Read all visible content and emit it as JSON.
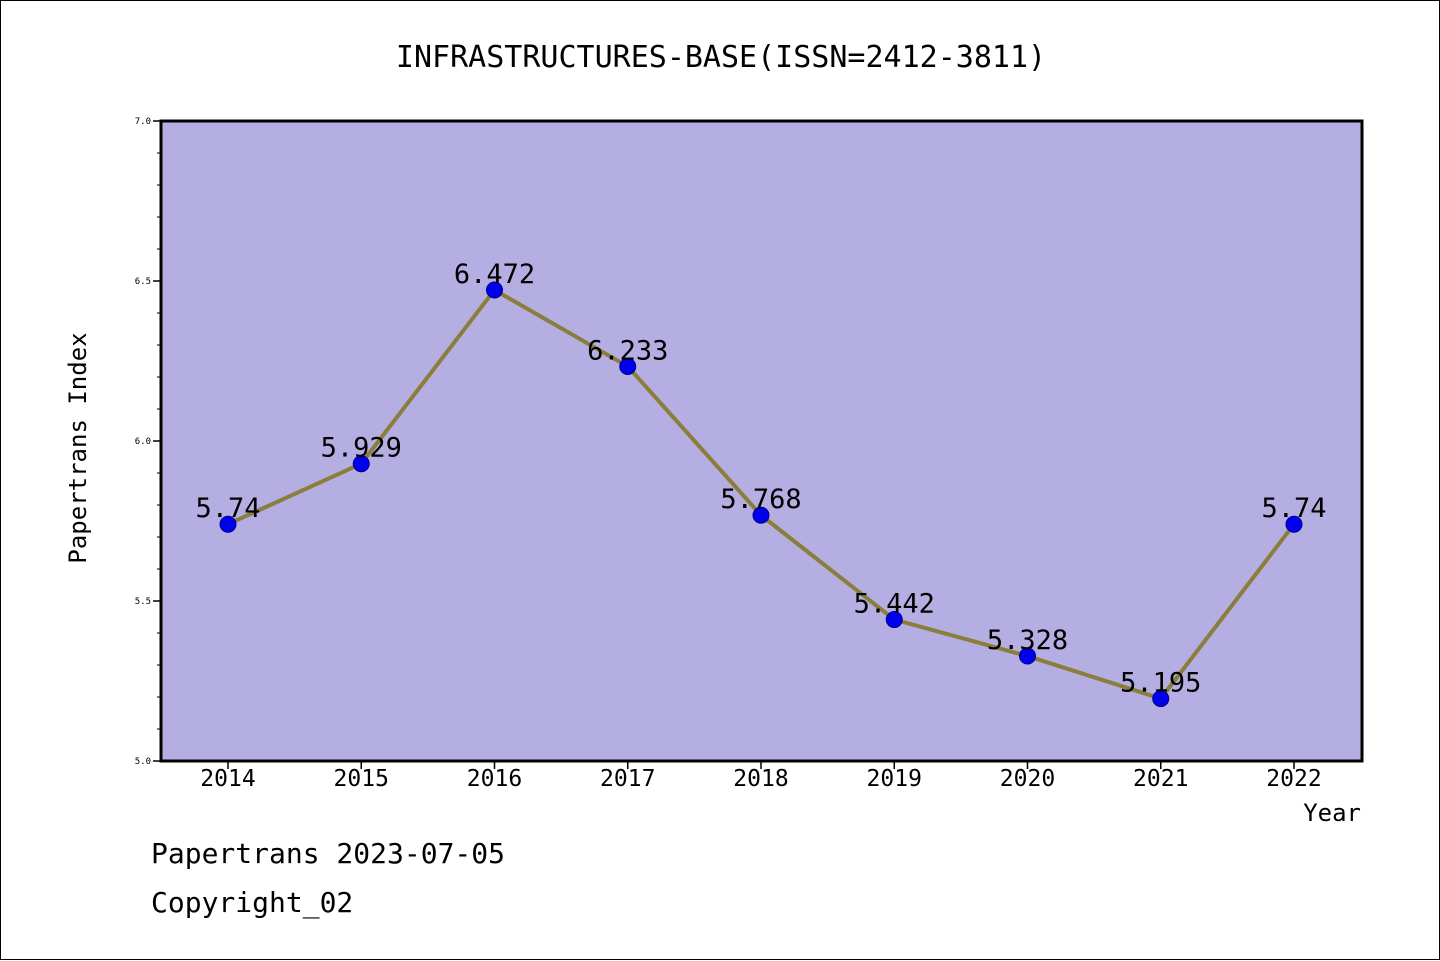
{
  "chart_data": {
    "type": "line",
    "title": "INFRASTRUCTURES-BASE(ISSN=2412-3811)",
    "xlabel": "Year",
    "ylabel": "Papertrans Index",
    "categories": [
      "2014",
      "2015",
      "2016",
      "2017",
      "2018",
      "2019",
      "2020",
      "2021",
      "2022"
    ],
    "values": [
      5.74,
      5.929,
      6.472,
      6.233,
      5.768,
      5.442,
      5.328,
      5.195,
      5.74
    ],
    "value_labels": [
      "5.74",
      "5.929",
      "6.472",
      "6.233",
      "5.768",
      "5.442",
      "5.328",
      "5.195",
      "5.74"
    ],
    "ylim": [
      5.0,
      7.0
    ],
    "yticks": [
      "5.0",
      "5.5",
      "6.0",
      "6.5",
      "7.0"
    ],
    "grid": false,
    "colors": {
      "plot_background": "#b4aee2",
      "line": "#8b7d3a",
      "marker": "#0000ee"
    }
  },
  "footer": {
    "line1": "Papertrans 2023-07-05",
    "line2": "Copyright_02"
  }
}
